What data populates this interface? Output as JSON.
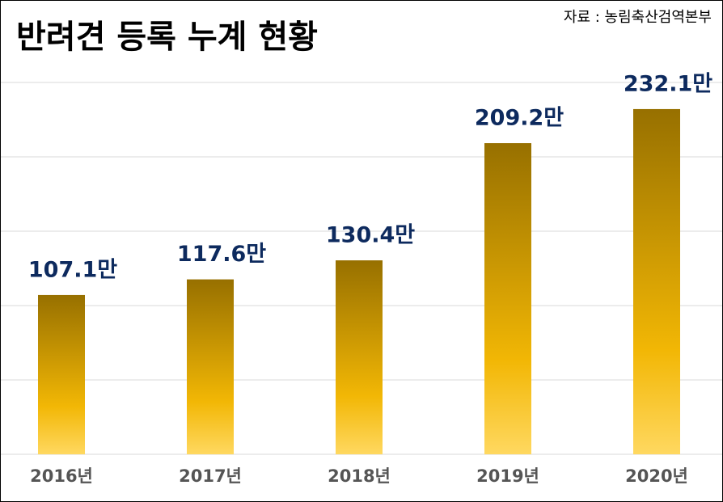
{
  "chart_data": {
    "type": "bar",
    "title": "반려견 등록 누계 현황",
    "source": "자료 : 농림축산검역본부",
    "categories": [
      "2016년",
      "2017년",
      "2018년",
      "2019년",
      "2020년"
    ],
    "values": [
      107.1,
      117.6,
      130.4,
      209.2,
      232.1
    ],
    "value_labels": [
      "107.1만",
      "117.6만",
      "130.4만",
      "209.2만",
      "232.1만"
    ],
    "color": "#f2b705",
    "ylim": [
      0,
      250
    ],
    "yticks": [
      0,
      50,
      100,
      150,
      200,
      250
    ],
    "grid": true
  }
}
